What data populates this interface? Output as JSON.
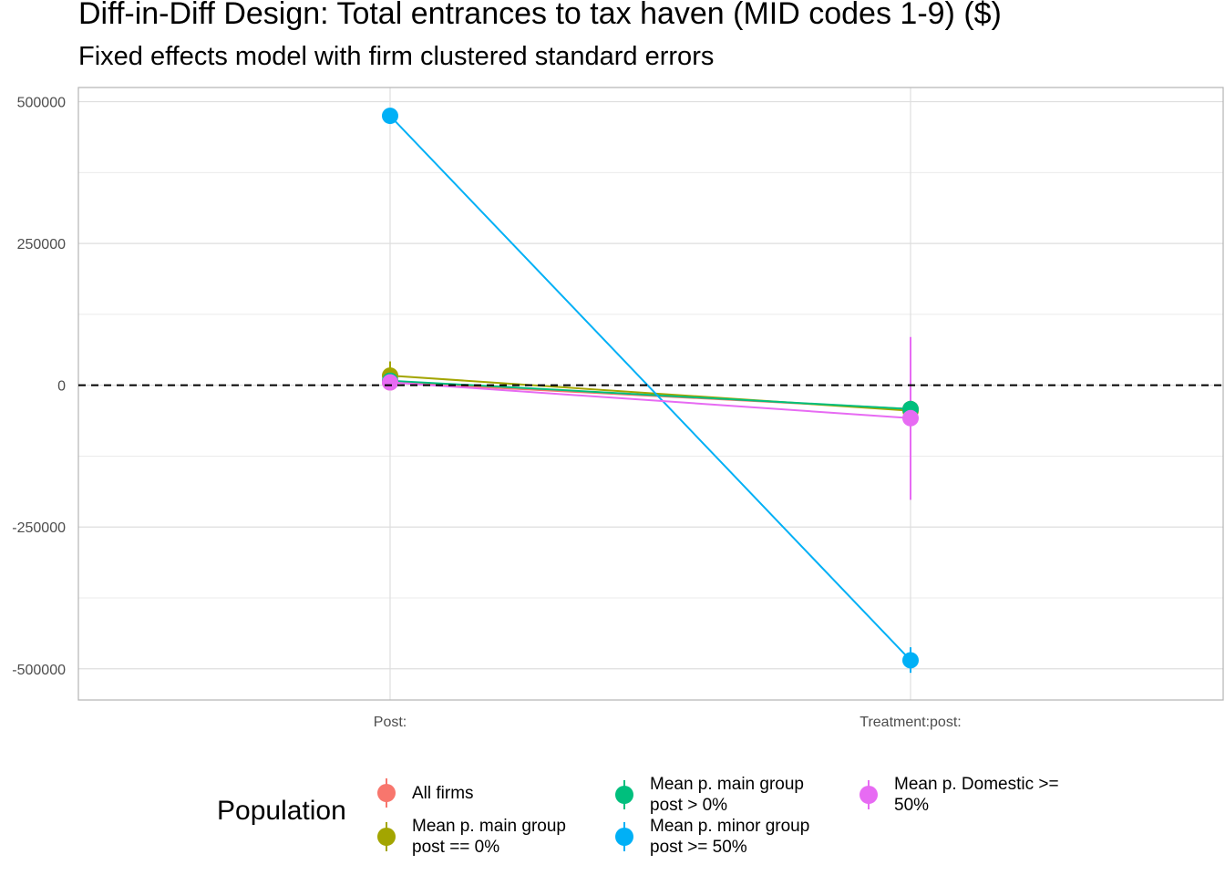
{
  "chart_data": {
    "type": "line",
    "title": "Diff-in-Diff Design: Total entrances to tax haven (MID codes 1-9)  ($)",
    "subtitle": "Fixed effects model with firm clustered standard errors",
    "xlabel": "",
    "ylabel": "",
    "categories": [
      "Post:",
      "Treatment:post:"
    ],
    "ylim": [
      -555000,
      525000
    ],
    "y_ticks": [
      500000,
      250000,
      0,
      -250000,
      -500000
    ],
    "y_tick_labels": [
      "500000",
      "250000",
      "0",
      "-250000",
      "-500000"
    ],
    "reference_line": {
      "y": 0,
      "style": "dashed",
      "color": "#000000"
    },
    "grid": true,
    "legend": {
      "title": "Population",
      "position": "bottom"
    },
    "series": [
      {
        "name": "All firms",
        "color": "#F8766D",
        "values": [
          5000,
          -42000
        ],
        "lower": [
          0,
          -42000
        ],
        "upper": [
          10000,
          -42000
        ]
      },
      {
        "name": "Mean p. main group post == 0%",
        "color": "#A3A500",
        "values": [
          17000,
          -45000
        ],
        "lower": [
          -2000,
          -45000
        ],
        "upper": [
          42000,
          -45000
        ]
      },
      {
        "name": "Mean p. main group post > 0%",
        "color": "#00BF7D",
        "values": [
          8000,
          -42000
        ],
        "lower": [
          0,
          -50000
        ],
        "upper": [
          14000,
          -34000
        ]
      },
      {
        "name": "Mean p. minor group post >= 50%",
        "color": "#00B0F6",
        "values": [
          475000,
          -485000
        ],
        "lower": [
          470000,
          -507000
        ],
        "upper": [
          480000,
          -462000
        ]
      },
      {
        "name": "Mean p. Domestic >= 50%",
        "color": "#E76BF3",
        "values": [
          5000,
          -58000
        ],
        "lower": [
          0,
          -202000
        ],
        "upper": [
          10000,
          85000
        ]
      }
    ]
  }
}
